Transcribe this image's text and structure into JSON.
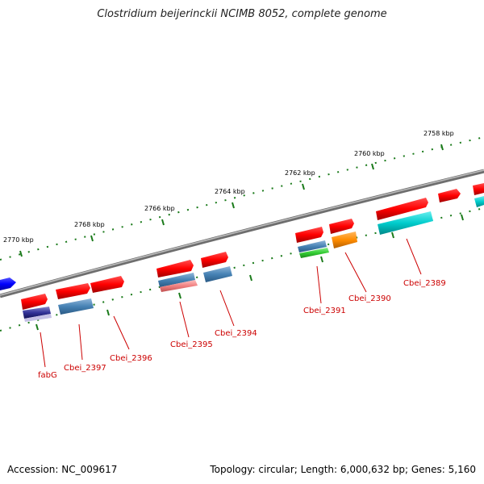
{
  "title": "Clostridium beijerinckii NCIMB 8052, complete genome",
  "footer": {
    "accession": "Accession: NC_009617",
    "info": "Topology: circular; Length: 6,000,632 bp; Genes: 5,160"
  },
  "scale_labels": [
    "2758 kbp",
    "2760 kbp",
    "2762 kbp",
    "2764 kbp",
    "2766 kbp",
    "2768 kbp",
    "2770 kbp"
  ],
  "gene_labels": [
    "Cbei_2389",
    "Cbei_2390",
    "Cbei_2391",
    "Cbei_2394",
    "Cbei_2395",
    "Cbei_2396",
    "Cbei_2397",
    "fabG"
  ],
  "colors": {
    "cds": "#ff0000",
    "backbone": "#808080",
    "scale_ticks": "#1a7a1a",
    "label": "#cc0000",
    "blue_arrow": "#0000ff",
    "steelblue": "#4682b4",
    "cyan": "#00cccc",
    "orange": "#ff8c00",
    "green": "#33cc33",
    "pink": "#f08080",
    "navy": "#333399"
  }
}
